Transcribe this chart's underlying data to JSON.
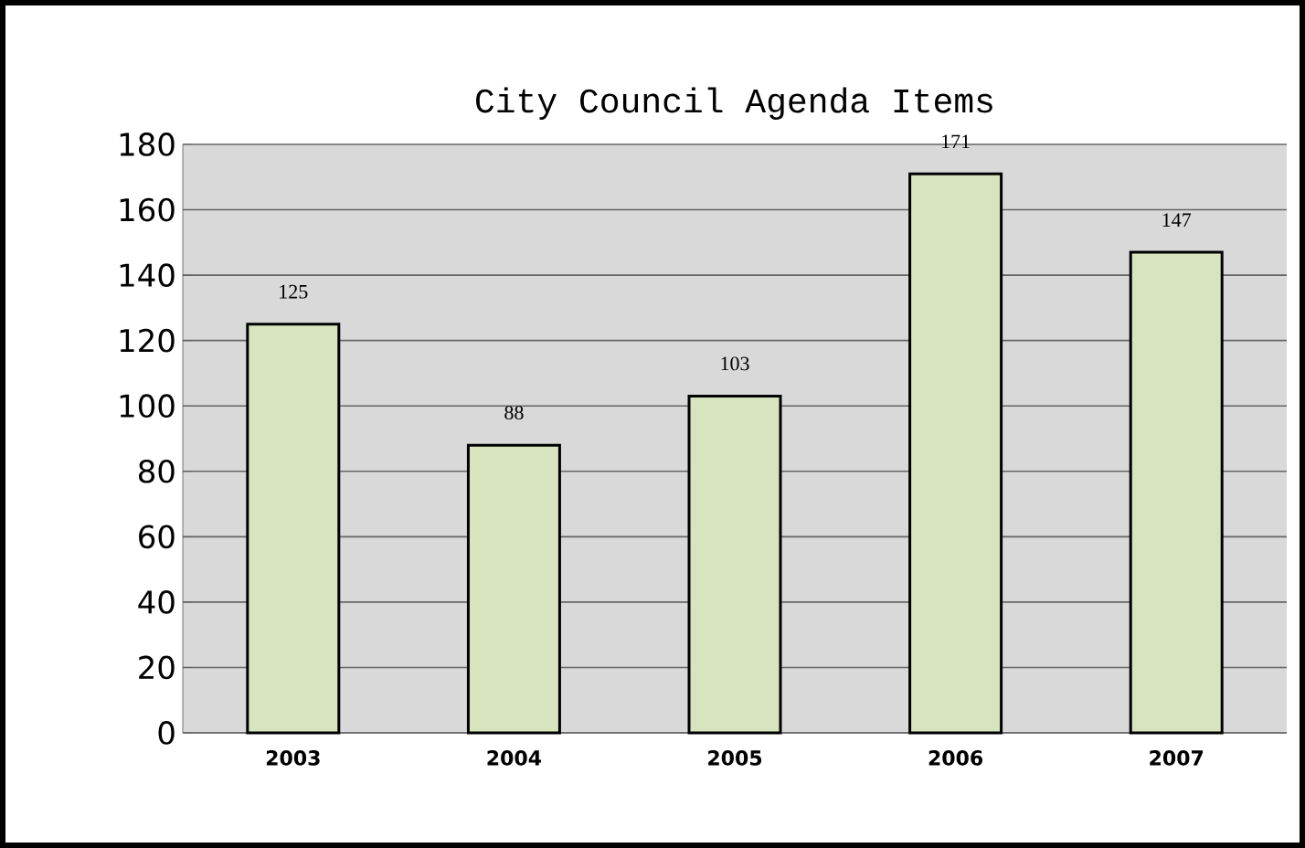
{
  "chart_data": {
    "type": "bar",
    "title": "City Council Agenda Items",
    "categories": [
      "2003",
      "2004",
      "2005",
      "2006",
      "2007"
    ],
    "values": [
      125,
      88,
      103,
      171,
      147
    ],
    "color": "#d7e4bd",
    "ylim": [
      0,
      180
    ],
    "yticks": [
      0,
      20,
      40,
      60,
      80,
      100,
      120,
      140,
      160,
      180
    ],
    "grid": "y",
    "data_labels": true
  }
}
